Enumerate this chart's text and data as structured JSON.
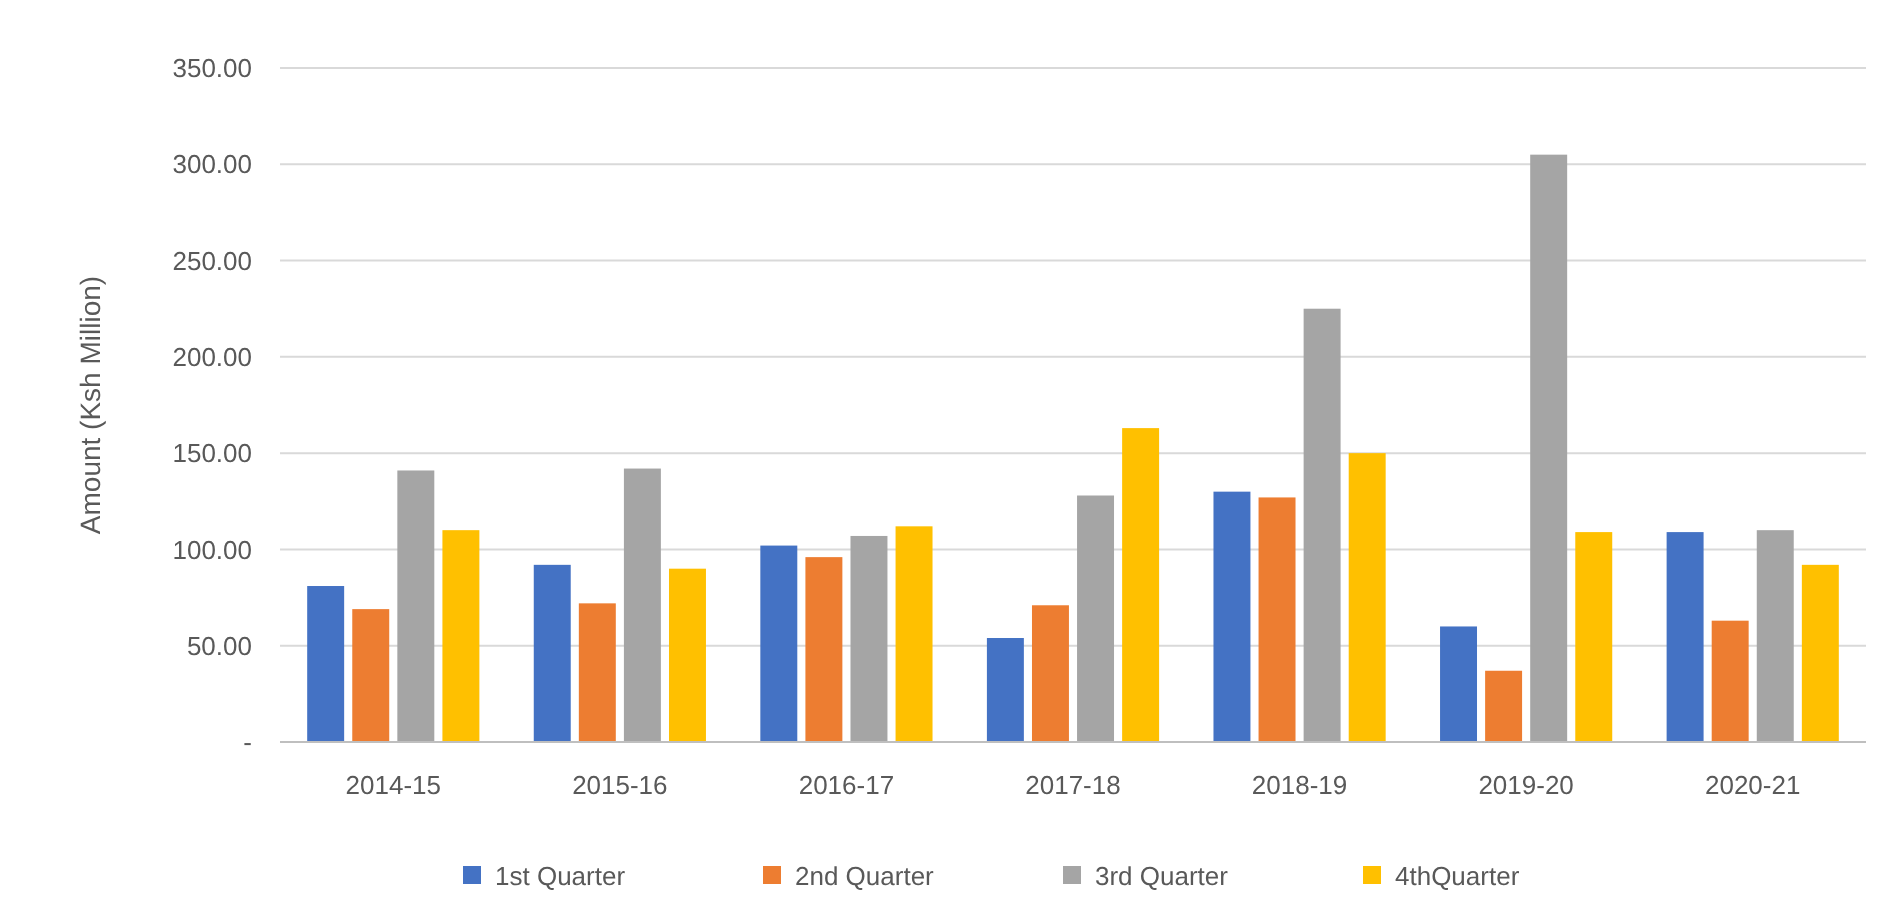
{
  "chart_data": {
    "type": "bar",
    "ylabel": "Amount (Ksh Million)",
    "categories": [
      "2014-15",
      "2015-16",
      "2016-17",
      "2017-18",
      "2018-19",
      "2019-20",
      "2020-21"
    ],
    "series": [
      {
        "name": "1st Quarter",
        "color": "#4472c4",
        "values": [
          81,
          92,
          102,
          54,
          130,
          60,
          109
        ]
      },
      {
        "name": "2nd Quarter",
        "color": "#ed7d31",
        "values": [
          69,
          72,
          96,
          71,
          127,
          37,
          63
        ]
      },
      {
        "name": "3rd Quarter",
        "color": "#a5a5a5",
        "values": [
          141,
          142,
          107,
          128,
          225,
          305,
          110
        ]
      },
      {
        "name": "4thQuarter",
        "color": "#ffc000",
        "values": [
          110,
          90,
          112,
          163,
          150,
          109,
          92
        ]
      }
    ],
    "ylim": [
      0,
      350
    ],
    "yticks": [
      {
        "value": 0,
        "label": "-"
      },
      {
        "value": 50,
        "label": "50.00"
      },
      {
        "value": 100,
        "label": "100.00"
      },
      {
        "value": 150,
        "label": "150.00"
      },
      {
        "value": 200,
        "label": "200.00"
      },
      {
        "value": 250,
        "label": "250.00"
      },
      {
        "value": 300,
        "label": "300.00"
      },
      {
        "value": 350,
        "label": "350.00"
      }
    ],
    "grid": "y",
    "legend": "bottom"
  }
}
